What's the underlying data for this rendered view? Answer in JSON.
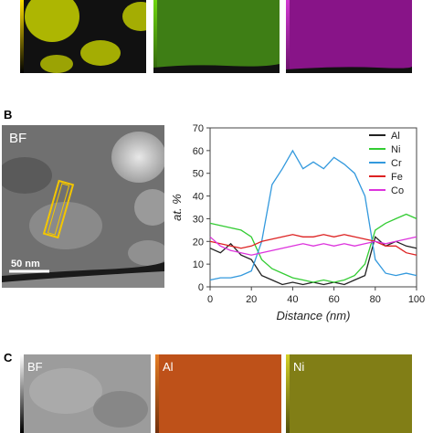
{
  "panels": {
    "b": {
      "letter": "B",
      "bf_label": "BF",
      "scalebar_label": "50 nm"
    },
    "c": {
      "letter": "C",
      "labels": [
        "BF",
        "Al",
        "Ni"
      ]
    }
  },
  "colors": {
    "map_yellow": "#c9d400",
    "map_green": "#59b51a",
    "map_magenta": "#b31ab3",
    "map_orange": "#d05a1a",
    "map_olive": "#a8a21a"
  },
  "chart_data": {
    "type": "line",
    "title": "",
    "xlabel": "Distance (nm)",
    "ylabel": "at. %",
    "xlim": [
      0,
      100
    ],
    "ylim": [
      0,
      70
    ],
    "xticks": [
      0,
      20,
      40,
      60,
      80,
      100
    ],
    "yticks": [
      0,
      10,
      20,
      30,
      40,
      50,
      60,
      70
    ],
    "grid": false,
    "legend_position": "top-right",
    "x": [
      0,
      5,
      10,
      15,
      20,
      25,
      30,
      35,
      40,
      45,
      50,
      55,
      60,
      65,
      70,
      75,
      80,
      85,
      90,
      95,
      100
    ],
    "series": [
      {
        "name": "Al",
        "color": "#222222",
        "values": [
          17,
          15,
          19,
          14,
          12,
          5,
          3,
          1,
          2,
          1,
          2,
          1,
          2,
          1,
          3,
          5,
          22,
          18,
          20,
          18,
          17
        ]
      },
      {
        "name": "Ni",
        "color": "#33cc33",
        "values": [
          28,
          27,
          26,
          25,
          22,
          12,
          8,
          6,
          4,
          3,
          2,
          3,
          2,
          3,
          5,
          10,
          25,
          28,
          30,
          32,
          30
        ]
      },
      {
        "name": "Cr",
        "color": "#3399dd",
        "values": [
          3,
          4,
          4,
          5,
          7,
          20,
          45,
          52,
          60,
          52,
          55,
          52,
          57,
          54,
          50,
          40,
          12,
          6,
          5,
          6,
          5
        ]
      },
      {
        "name": "Fe",
        "color": "#dd2222",
        "values": [
          20,
          19,
          18,
          17,
          18,
          20,
          21,
          22,
          23,
          22,
          22,
          23,
          22,
          23,
          22,
          21,
          20,
          18,
          18,
          15,
          14
        ]
      },
      {
        "name": "Co",
        "color": "#dd33dd",
        "values": [
          22,
          18,
          16,
          15,
          14,
          15,
          16,
          17,
          18,
          19,
          18,
          19,
          18,
          19,
          18,
          19,
          20,
          19,
          20,
          21,
          22
        ]
      }
    ]
  }
}
